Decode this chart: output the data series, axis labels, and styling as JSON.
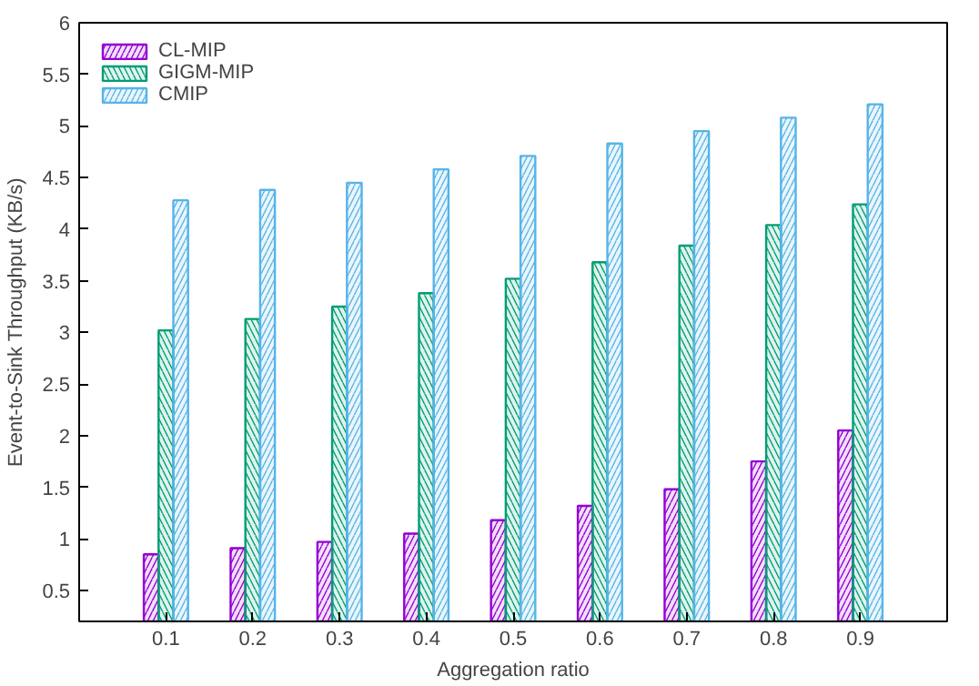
{
  "chart_data": {
    "type": "bar",
    "xlabel": "Aggregation ratio",
    "ylabel": "Event-to-Sink Throughput (KB/s)",
    "x": [
      0.1,
      0.2,
      0.3,
      0.4,
      0.5,
      0.6,
      0.7,
      0.8,
      0.9
    ],
    "series": [
      {
        "name": "CL-MIP",
        "color": "#9400d3",
        "values": [
          0.85,
          0.91,
          0.97,
          1.05,
          1.18,
          1.32,
          1.48,
          1.75,
          2.05
        ]
      },
      {
        "name": "GIGM-MIP",
        "color": "#009e73",
        "values": [
          3.02,
          3.13,
          3.25,
          3.38,
          3.52,
          3.68,
          3.84,
          4.04,
          4.24
        ]
      },
      {
        "name": "CMIP",
        "color": "#56b4e9",
        "values": [
          4.28,
          4.38,
          4.45,
          4.58,
          4.71,
          4.83,
          4.95,
          5.08,
          5.21
        ]
      }
    ],
    "xlim": [
      0,
      1
    ],
    "xticks": [
      0.1,
      0.2,
      0.3,
      0.4,
      0.5,
      0.6,
      0.7,
      0.8,
      0.9
    ],
    "ylim": [
      0.2,
      6
    ],
    "yticks": [
      0.5,
      1,
      1.5,
      2,
      2.5,
      3,
      3.5,
      4,
      4.5,
      5,
      5.5,
      6
    ],
    "legend": "top left",
    "grid": false
  }
}
